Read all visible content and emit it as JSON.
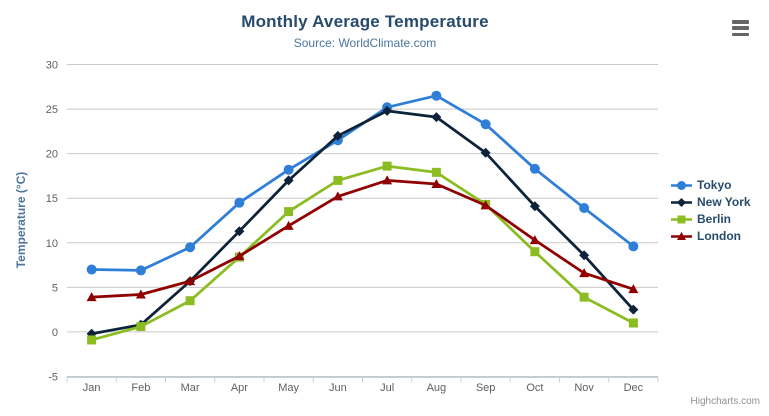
{
  "header": {
    "menu_icon": "hamburger-icon"
  },
  "credit": "Highcharts.com",
  "colors": {
    "title": "#274b6d",
    "subtitle": "#4d759e",
    "axis_title": "#4d759e",
    "axis_labels": "#606060",
    "grid_line": "#c9c9c9",
    "x_axis_line": "#c0d0e0",
    "legend_text": "#274b6d",
    "credit_text": "#909090",
    "menu_icon": "#666666"
  },
  "chart_data": {
    "type": "line",
    "title": "Monthly Average Temperature",
    "subtitle": "Source: WorldClimate.com",
    "categories": [
      "Jan",
      "Feb",
      "Mar",
      "Apr",
      "May",
      "Jun",
      "Jul",
      "Aug",
      "Sep",
      "Oct",
      "Nov",
      "Dec"
    ],
    "series": [
      {
        "name": "Tokyo",
        "color": "#2f7ed8",
        "marker": "circle",
        "values": [
          7.0,
          6.9,
          9.5,
          14.5,
          18.2,
          21.5,
          25.2,
          26.5,
          23.3,
          18.3,
          13.9,
          9.6
        ]
      },
      {
        "name": "New York",
        "color": "#0d233a",
        "marker": "diamond",
        "values": [
          -0.2,
          0.8,
          5.7,
          11.3,
          17.0,
          22.0,
          24.8,
          24.1,
          20.1,
          14.1,
          8.6,
          2.5
        ]
      },
      {
        "name": "Berlin",
        "color": "#8bbc21",
        "marker": "square",
        "values": [
          -0.9,
          0.6,
          3.5,
          8.4,
          13.5,
          17.0,
          18.6,
          17.9,
          14.3,
          9.0,
          3.9,
          1.0
        ]
      },
      {
        "name": "London",
        "color": "#910000",
        "marker": "triangle",
        "values": [
          3.9,
          4.2,
          5.7,
          8.5,
          11.9,
          15.2,
          17.0,
          16.6,
          14.2,
          10.3,
          6.6,
          4.8
        ]
      }
    ],
    "xlabel": "",
    "ylabel": "Temperature (°C)",
    "ylim": [
      -5,
      30
    ],
    "y_ticks": [
      30,
      25,
      20,
      15,
      10,
      5,
      0,
      -5
    ],
    "grid": "horizontal",
    "legend_position": "right"
  }
}
